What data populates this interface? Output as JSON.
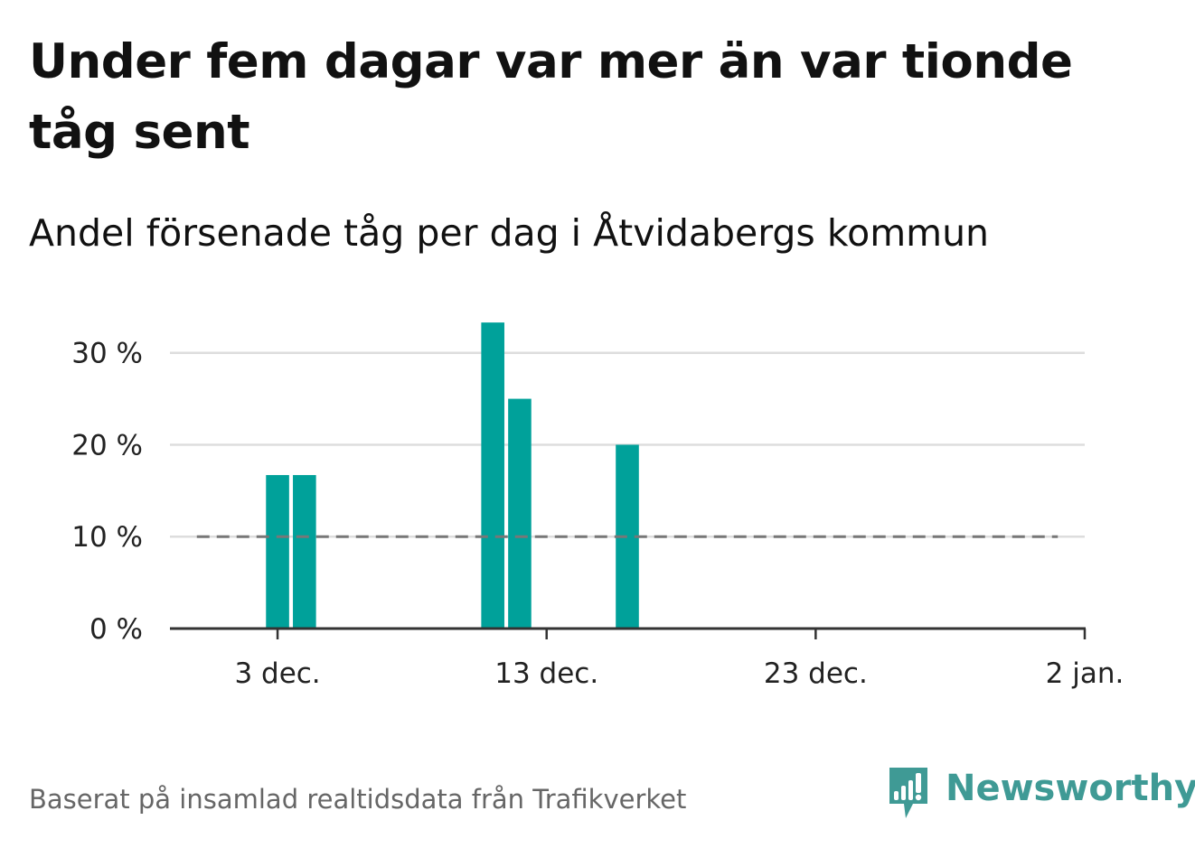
{
  "title": "Under fem dagar var mer än var tionde tåg sent",
  "subtitle": "Andel försenade tåg per dag i Åtvidabergs kommun",
  "source": "Baserat på insamlad realtidsdata från Trafikverket",
  "brand": {
    "name": "Newsworthy",
    "icon": "newsworthy-logo-icon",
    "color": "#3f9a95"
  },
  "chart_data": {
    "type": "bar",
    "title": "Andel försenade tåg per dag i Åtvidabergs kommun",
    "xlabel": "",
    "ylabel": "",
    "x_type": "date",
    "xlim": [
      "2022-11-29",
      "2023-01-02"
    ],
    "ylim": [
      0,
      34
    ],
    "y_unit": "%",
    "y_ticks": [
      0,
      10,
      20,
      30
    ],
    "y_tick_labels": [
      "0 %",
      "10 %",
      "20 %",
      "30 %"
    ],
    "x_ticks": [
      "2022-12-03",
      "2022-12-13",
      "2022-12-23",
      "2023-01-02"
    ],
    "x_tick_labels": [
      "3 dec.",
      "13 dec.",
      "23 dec.",
      "2 jan."
    ],
    "grid": true,
    "bar_color": "#00a19a",
    "series": [
      {
        "x": [
          "2022-12-03",
          "2022-12-04",
          "2022-12-11",
          "2022-12-12",
          "2022-12-16"
        ],
        "values": [
          16.7,
          16.7,
          33.3,
          25.0,
          20.0
        ]
      }
    ],
    "reference_line": {
      "y": 10,
      "x_start": "2022-11-30",
      "x_end": "2023-01-01",
      "style": "dashed",
      "color": "#777777"
    }
  }
}
